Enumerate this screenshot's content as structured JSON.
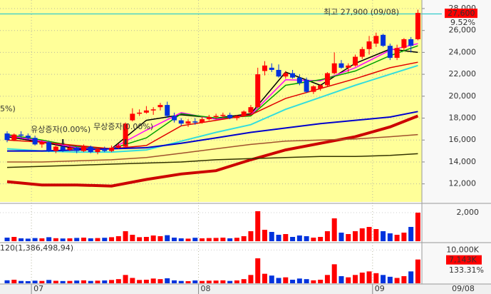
{
  "chart_data": [
    {
      "type": "candlestick",
      "categories": [
        null,
        null,
        null,
        null,
        "07",
        null,
        null,
        null,
        null,
        null,
        null,
        null,
        null,
        null,
        null,
        null,
        null,
        null,
        null,
        null,
        null,
        null,
        null,
        null,
        null,
        null,
        null,
        null,
        "08",
        null,
        null,
        null,
        null,
        null,
        null,
        null,
        null,
        null,
        null,
        null,
        null,
        null,
        null,
        null,
        null,
        null,
        null,
        null,
        null,
        null,
        null,
        null,
        null,
        "09",
        null,
        null,
        null,
        null,
        null,
        null
      ],
      "open": [
        16600,
        16000,
        16500,
        16400,
        16200,
        15600,
        15800,
        15000,
        15400,
        15100,
        15300,
        15000,
        15400,
        14900,
        15200,
        15000,
        15300,
        15400,
        17800,
        18400,
        18500,
        18700,
        19000,
        19200,
        18200,
        17800,
        17500,
        17700,
        17600,
        17900,
        18100,
        18200,
        18300,
        18000,
        18200,
        18500,
        19000,
        22300,
        22600,
        22400,
        21800,
        22100,
        21700,
        21500,
        20400,
        20700,
        21000,
        22100,
        23000,
        22600,
        22800,
        23600,
        24300,
        24800,
        25600,
        24600,
        23500,
        24400,
        25200,
        25200
      ],
      "high": [
        16800,
        16600,
        16800,
        16600,
        16400,
        16000,
        15900,
        15600,
        15500,
        15500,
        15400,
        15600,
        15500,
        15300,
        15400,
        15500,
        15700,
        17600,
        18900,
        18800,
        19100,
        19000,
        19400,
        19500,
        18500,
        18000,
        17900,
        18000,
        18100,
        18300,
        18400,
        18500,
        18500,
        18300,
        18700,
        19200,
        22600,
        23200,
        23000,
        22900,
        22300,
        22400,
        22000,
        21700,
        21000,
        21100,
        22200,
        24000,
        23300,
        23000,
        23800,
        24500,
        25500,
        25800,
        25700,
        24800,
        24700,
        25300,
        25400,
        27900
      ],
      "low": [
        15800,
        15900,
        16200,
        16000,
        15500,
        15300,
        14900,
        14800,
        14900,
        15000,
        14800,
        14900,
        14800,
        14700,
        14900,
        14900,
        15200,
        15300,
        17700,
        18200,
        18400,
        18300,
        18700,
        18000,
        17600,
        17300,
        17200,
        17400,
        17500,
        17800,
        17900,
        18000,
        17900,
        17800,
        18100,
        18400,
        18900,
        21900,
        22200,
        21700,
        21600,
        21600,
        21000,
        20300,
        20200,
        20500,
        20900,
        22000,
        22500,
        22200,
        22700,
        23400,
        23800,
        24500,
        24500,
        23300,
        23300,
        24200,
        24000,
        25100
      ],
      "close": [
        16000,
        16500,
        16400,
        16200,
        15600,
        15800,
        15000,
        15400,
        15100,
        15300,
        15000,
        15400,
        14900,
        15200,
        15000,
        15300,
        15500,
        17500,
        18400,
        18500,
        18700,
        18800,
        19200,
        18200,
        17800,
        17500,
        17700,
        17600,
        17900,
        18100,
        18200,
        18300,
        18000,
        18200,
        18600,
        19000,
        22000,
        22800,
        22400,
        21800,
        22100,
        21700,
        21200,
        20400,
        20900,
        21000,
        22100,
        23000,
        22600,
        22800,
        23600,
        24300,
        25000,
        25500,
        24600,
        23500,
        24400,
        25200,
        24600,
        27600
      ],
      "up_color": "#ff0000",
      "down_color": "#0033dd",
      "background": "#ffff99",
      "ylim": [
        10350,
        28780
      ],
      "yticks": [
        {
          "value": 12000,
          "label": "12,000"
        },
        {
          "value": 14000,
          "label": "14,000"
        },
        {
          "value": 16000,
          "label": "16,000"
        },
        {
          "value": 18000,
          "label": "18,000"
        },
        {
          "value": 20000,
          "label": "20,000"
        },
        {
          "value": 22000,
          "label": "22,000"
        },
        {
          "value": 24000,
          "label": "24,000"
        },
        {
          "value": 26000,
          "label": "26,000"
        },
        {
          "value": 28000,
          "label": "28,000"
        }
      ],
      "grid": true,
      "lines": [
        {
          "color": "#000000",
          "width": 1.5,
          "x": [
            0,
            5,
            10,
            15,
            20,
            25,
            30,
            35,
            40,
            45,
            50,
            55,
            59
          ],
          "values": [
            16300,
            15800,
            15200,
            15200,
            17800,
            18300,
            18000,
            18400,
            22200,
            21000,
            23000,
            24300,
            24000
          ]
        },
        {
          "color": "#ff00ff",
          "width": 1.5,
          "x": [
            0,
            5,
            10,
            15,
            20,
            25,
            30,
            35,
            40,
            45,
            50,
            55,
            59
          ],
          "values": [
            16400,
            15900,
            15300,
            15200,
            16900,
            18500,
            17900,
            18300,
            21500,
            21400,
            22600,
            24200,
            24800
          ]
        },
        {
          "color": "#00a000",
          "width": 1.5,
          "x": [
            0,
            5,
            10,
            15,
            20,
            25,
            30,
            35,
            40,
            45,
            50,
            55,
            59
          ],
          "values": [
            16500,
            16000,
            15400,
            15200,
            16200,
            18400,
            18000,
            18200,
            21000,
            21500,
            22300,
            23700,
            24600
          ]
        },
        {
          "color": "#e00000",
          "width": 1.5,
          "x": [
            0,
            5,
            10,
            15,
            20,
            25,
            30,
            35,
            40,
            45,
            50,
            55,
            59
          ],
          "values": [
            16000,
            15800,
            15500,
            15200,
            15500,
            17300,
            17800,
            18300,
            19800,
            20700,
            21600,
            22600,
            23100
          ]
        },
        {
          "color": "#33dddd",
          "width": 2,
          "x": [
            0,
            5,
            10,
            15,
            20,
            25,
            30,
            35,
            40,
            45,
            50,
            55,
            59
          ],
          "values": [
            15200,
            15000,
            14900,
            14900,
            15100,
            15900,
            16700,
            17400,
            18800,
            19900,
            21000,
            22000,
            22800
          ]
        },
        {
          "color": "#0000cc",
          "width": 2,
          "x": [
            0,
            5,
            10,
            15,
            20,
            25,
            30,
            35,
            40,
            45,
            50,
            55,
            59
          ],
          "values": [
            15000,
            15000,
            15100,
            15200,
            15300,
            15700,
            16200,
            16700,
            17100,
            17500,
            17800,
            18100,
            18600
          ]
        },
        {
          "color": "#cc0000",
          "width": 4,
          "x": [
            0,
            5,
            10,
            15,
            20,
            25,
            30,
            35,
            40,
            45,
            50,
            55,
            59
          ],
          "values": [
            12200,
            11900,
            11900,
            11800,
            12400,
            12900,
            13200,
            14200,
            15100,
            15700,
            16300,
            17200,
            18200
          ]
        },
        {
          "color": "#a0522d",
          "width": 1.5,
          "x": [
            0,
            5,
            10,
            15,
            20,
            25,
            30,
            35,
            40,
            45,
            50,
            55,
            59
          ],
          "values": [
            14000,
            14000,
            14100,
            14200,
            14400,
            14800,
            15200,
            15600,
            15900,
            16000,
            16100,
            16300,
            16500
          ]
        },
        {
          "color": "#333300",
          "width": 1.5,
          "x": [
            0,
            5,
            10,
            15,
            20,
            25,
            30,
            35,
            40,
            45,
            50,
            55,
            59
          ],
          "values": [
            13500,
            13600,
            13700,
            13800,
            13900,
            14000,
            14200,
            14300,
            14400,
            14500,
            14500,
            14600,
            14750
          ]
        }
      ],
      "high_mark": {
        "value": 27900,
        "label": "최고 27,900 (09/08)"
      },
      "last_price": {
        "value": 27600,
        "label": "27,600"
      },
      "change_label": "9.52%",
      "events": [
        {
          "index": 8,
          "label": "유상증자(0.00%)"
        },
        {
          "index": 17,
          "label": "무상증자(0.00%)"
        }
      ],
      "cut_label": "5%)",
      "last_date": "09/08"
    },
    {
      "type": "bar",
      "color_by": "candles",
      "values": [
        250,
        300,
        200,
        180,
        220,
        200,
        280,
        210,
        190,
        200,
        230,
        250,
        200,
        220,
        240,
        280,
        350,
        700,
        450,
        280,
        300,
        400,
        350,
        420,
        250,
        200,
        180,
        240,
        200,
        220,
        230,
        250,
        200,
        240,
        350,
        700,
        2100,
        800,
        650,
        450,
        500,
        300,
        400,
        350,
        250,
        300,
        700,
        1600,
        600,
        500,
        700,
        900,
        1000,
        850,
        700,
        550,
        450,
        600,
        1000,
        2000
      ],
      "ylim": [
        0,
        2600
      ],
      "yticks": [
        {
          "value": 2000,
          "label": "2,000"
        }
      ]
    },
    {
      "type": "bar",
      "color_by": "candles",
      "title": "120(1,386,498,94)",
      "values": [
        900,
        1070,
        710,
        640,
        790,
        710,
        1000,
        750,
        680,
        710,
        820,
        890,
        710,
        790,
        860,
        1000,
        1250,
        2500,
        1610,
        1000,
        1070,
        1430,
        1250,
        1500,
        890,
        710,
        640,
        860,
        710,
        790,
        820,
        890,
        710,
        860,
        1250,
        2500,
        7500,
        2860,
        2320,
        1610,
        1790,
        1070,
        1430,
        1250,
        890,
        1070,
        2500,
        5710,
        2140,
        1790,
        2500,
        3210,
        3570,
        3040,
        2500,
        1960,
        1610,
        2140,
        3570,
        7143
      ],
      "ylim": [
        0,
        12000
      ],
      "yticks": [
        {
          "value": 10000,
          "label": "10,000K"
        }
      ],
      "last_label": {
        "value": 7143,
        "label": "7,143K"
      },
      "ratio_label": "133.31%"
    }
  ]
}
